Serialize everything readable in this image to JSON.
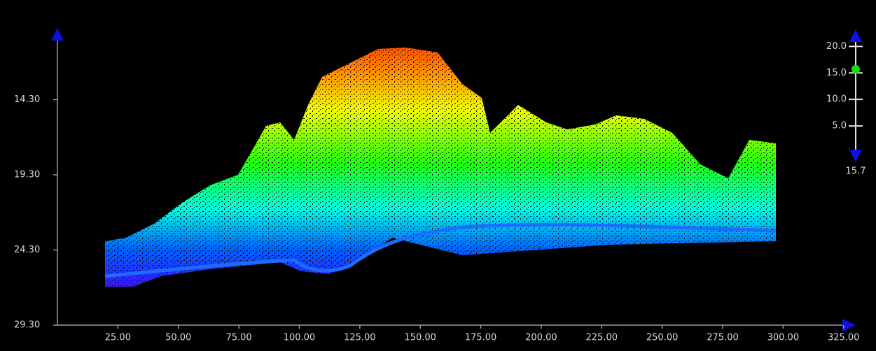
{
  "plot": {
    "xaxis": {
      "range": [
        0,
        330
      ],
      "ticks": [
        {
          "value": 25,
          "label": "25.00"
        },
        {
          "value": 50,
          "label": "50.00"
        },
        {
          "value": 75,
          "label": "75.00"
        },
        {
          "value": 100,
          "label": "100.00"
        },
        {
          "value": 125,
          "label": "125.00"
        },
        {
          "value": 150,
          "label": "150.00"
        },
        {
          "value": 175,
          "label": "175.00"
        },
        {
          "value": 200,
          "label": "200.00"
        },
        {
          "value": 225,
          "label": "225.00"
        },
        {
          "value": 250,
          "label": "250.00"
        },
        {
          "value": 275,
          "label": "275.00"
        },
        {
          "value": 300,
          "label": "300.00"
        },
        {
          "value": 325,
          "label": "325.00"
        }
      ]
    },
    "yaxis": {
      "range": [
        10,
        29.3
      ],
      "ticks": [
        {
          "value": 14.3,
          "label": "14.30"
        },
        {
          "value": 19.3,
          "label": "19.30"
        },
        {
          "value": 24.3,
          "label": "24.30"
        },
        {
          "value": 29.3,
          "label": "29.30"
        }
      ]
    }
  },
  "height_slider": {
    "range": [
      0,
      21.5
    ],
    "ticks": [
      {
        "value": 20,
        "label": "20.0"
      },
      {
        "value": 15,
        "label": "15.0"
      },
      {
        "value": 10,
        "label": "10.0"
      },
      {
        "value": 5,
        "label": "5.0"
      }
    ],
    "value": 15.7
  }
}
